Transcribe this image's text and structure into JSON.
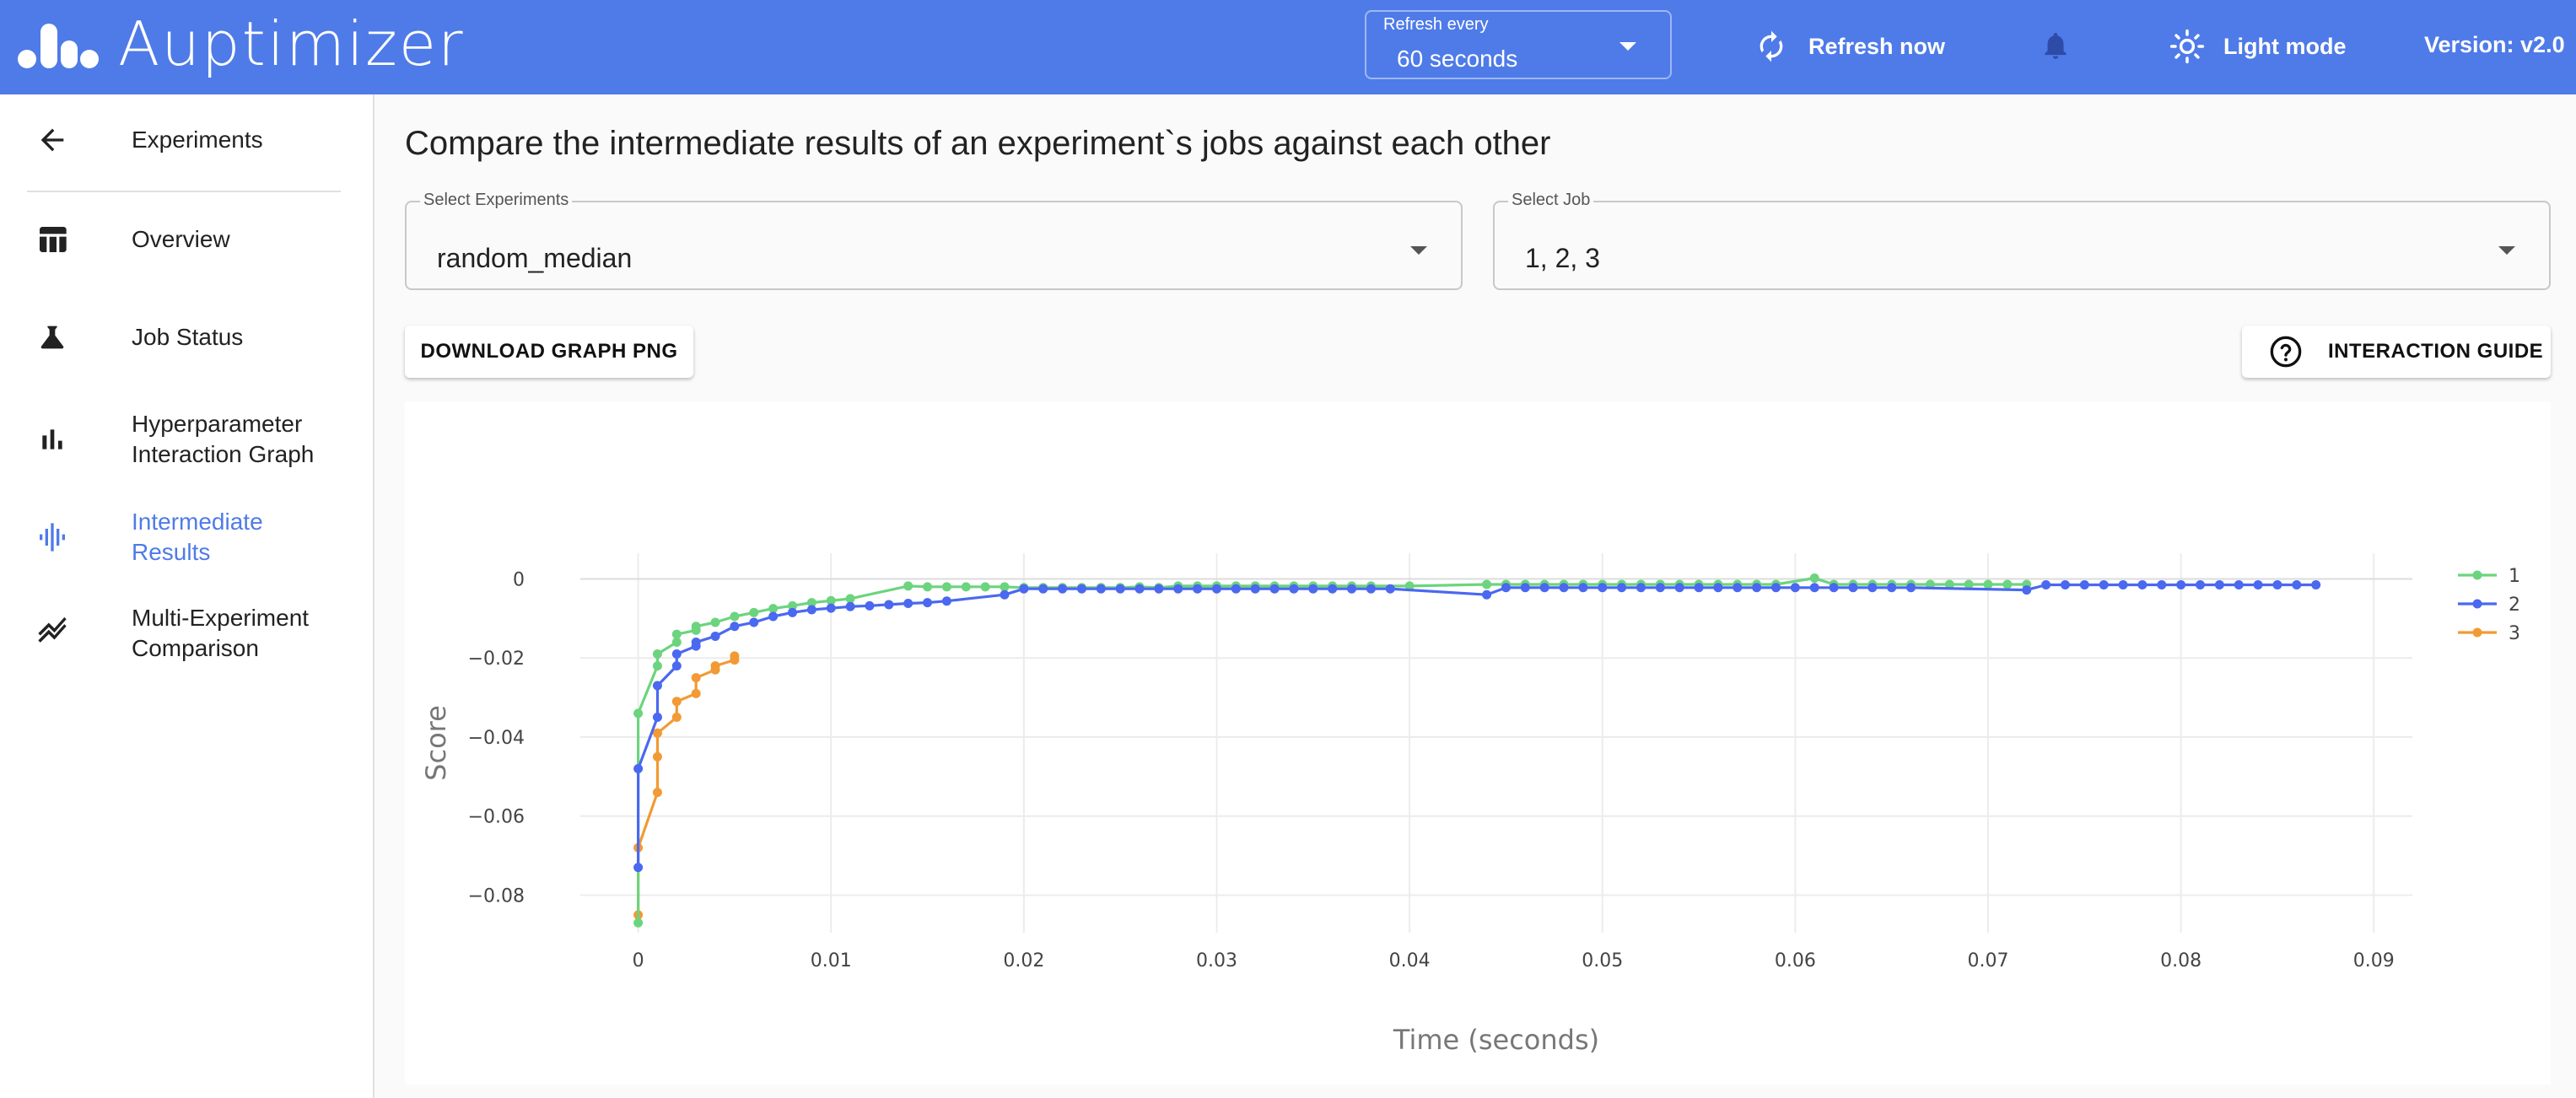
{
  "app": {
    "title": "Auptimizer",
    "version": "Version: v2.0"
  },
  "header": {
    "refresh_label": "Refresh every",
    "refresh_value": "60 seconds",
    "refresh_now": "Refresh now",
    "light_mode": "Light mode",
    "icons": {
      "logo": "bars-logo-icon",
      "refresh": "refresh-icon",
      "bell": "bell-icon",
      "sun": "sun-icon"
    }
  },
  "sidebar": {
    "items": [
      {
        "label": "Experiments",
        "icon": "arrow-left-icon"
      },
      {
        "label": "Overview",
        "icon": "table-icon"
      },
      {
        "label": "Job Status",
        "icon": "flask-icon"
      },
      {
        "label": "Hyperparameter Interaction Graph",
        "lines": [
          "Hyperparameter",
          "Interaction Graph"
        ],
        "icon": "bar-chart-icon"
      },
      {
        "label": "Intermediate Results",
        "lines": [
          "Intermediate",
          "Results"
        ],
        "icon": "waveform-icon",
        "active": true
      },
      {
        "label": "Multi-Experiment Comparison",
        "lines": [
          "Multi-Experiment",
          "Comparison"
        ],
        "icon": "trend-lines-icon"
      }
    ],
    "active_color": "#4f7be8"
  },
  "main": {
    "title": "Compare the intermediate results of an experiment`s jobs against each other",
    "experiment_select": {
      "label": "Select Experiments",
      "value": "random_median"
    },
    "job_select": {
      "label": "Select Job",
      "value": "1, 2, 3"
    },
    "download_button": "DOWNLOAD GRAPH PNG",
    "guide_button": "INTERACTION GUIDE"
  },
  "chart_data": {
    "type": "line",
    "xlabel": "Time (seconds)",
    "ylabel": "Score",
    "xlim": [
      -0.003,
      0.092
    ],
    "ylim": [
      -0.0895,
      0.0065
    ],
    "x_ticks": [
      0,
      0.01,
      0.02,
      0.03,
      0.04,
      0.05,
      0.06,
      0.07,
      0.08,
      0.09
    ],
    "x_tick_labels": [
      "0",
      "0.01",
      "0.02",
      "0.03",
      "0.04",
      "0.05",
      "0.06",
      "0.07",
      "0.08",
      "0.09"
    ],
    "y_ticks": [
      0,
      -0.02,
      -0.04,
      -0.06,
      -0.08
    ],
    "y_tick_labels": [
      "0",
      "−0.02",
      "−0.04",
      "−0.06",
      "−0.08"
    ],
    "legend_position": "right",
    "grid": true,
    "series": [
      {
        "name": "1",
        "color": "#6cd47e",
        "points": [
          [
            0,
            -0.087
          ],
          [
            0,
            -0.034
          ],
          [
            0.001,
            -0.022
          ],
          [
            0.001,
            -0.019
          ],
          [
            0.002,
            -0.016
          ],
          [
            0.002,
            -0.014
          ],
          [
            0.003,
            -0.013
          ],
          [
            0.003,
            -0.012
          ],
          [
            0.004,
            -0.011
          ],
          [
            0.005,
            -0.0095
          ],
          [
            0.006,
            -0.0085
          ],
          [
            0.007,
            -0.0075
          ],
          [
            0.008,
            -0.0068
          ],
          [
            0.009,
            -0.006
          ],
          [
            0.01,
            -0.0055
          ],
          [
            0.011,
            -0.005
          ],
          [
            0.014,
            -0.0018
          ],
          [
            0.015,
            -0.002
          ],
          [
            0.016,
            -0.002
          ],
          [
            0.017,
            -0.002
          ],
          [
            0.018,
            -0.002
          ],
          [
            0.019,
            -0.002
          ],
          [
            0.02,
            -0.0022
          ],
          [
            0.021,
            -0.0022
          ],
          [
            0.022,
            -0.0022
          ],
          [
            0.023,
            -0.0022
          ],
          [
            0.024,
            -0.0022
          ],
          [
            0.025,
            -0.0022
          ],
          [
            0.026,
            -0.002
          ],
          [
            0.027,
            -0.0022
          ],
          [
            0.028,
            -0.0018
          ],
          [
            0.029,
            -0.0018
          ],
          [
            0.03,
            -0.0018
          ],
          [
            0.031,
            -0.0018
          ],
          [
            0.032,
            -0.0018
          ],
          [
            0.033,
            -0.0018
          ],
          [
            0.034,
            -0.0018
          ],
          [
            0.035,
            -0.0018
          ],
          [
            0.036,
            -0.0018
          ],
          [
            0.037,
            -0.0018
          ],
          [
            0.038,
            -0.0018
          ],
          [
            0.04,
            -0.0018
          ],
          [
            0.044,
            -0.0014
          ],
          [
            0.045,
            -0.0014
          ],
          [
            0.046,
            -0.0014
          ],
          [
            0.047,
            -0.0014
          ],
          [
            0.048,
            -0.0014
          ],
          [
            0.049,
            -0.0014
          ],
          [
            0.05,
            -0.0014
          ],
          [
            0.051,
            -0.0014
          ],
          [
            0.052,
            -0.0014
          ],
          [
            0.053,
            -0.0014
          ],
          [
            0.054,
            -0.0014
          ],
          [
            0.055,
            -0.0014
          ],
          [
            0.056,
            -0.0014
          ],
          [
            0.057,
            -0.0014
          ],
          [
            0.058,
            -0.0014
          ],
          [
            0.059,
            -0.0014
          ],
          [
            0.061,
            0.0002
          ],
          [
            0.062,
            -0.0014
          ],
          [
            0.063,
            -0.0014
          ],
          [
            0.064,
            -0.0014
          ],
          [
            0.065,
            -0.0014
          ],
          [
            0.066,
            -0.0014
          ],
          [
            0.067,
            -0.0014
          ],
          [
            0.068,
            -0.0014
          ],
          [
            0.069,
            -0.0014
          ],
          [
            0.07,
            -0.0014
          ],
          [
            0.071,
            -0.0014
          ],
          [
            0.072,
            -0.0014
          ]
        ]
      },
      {
        "name": "2",
        "color": "#4a68f0",
        "points": [
          [
            0,
            -0.073
          ],
          [
            0,
            -0.048
          ],
          [
            0.001,
            -0.035
          ],
          [
            0.001,
            -0.027
          ],
          [
            0.002,
            -0.022
          ],
          [
            0.002,
            -0.019
          ],
          [
            0.003,
            -0.017
          ],
          [
            0.003,
            -0.016
          ],
          [
            0.004,
            -0.0145
          ],
          [
            0.005,
            -0.012
          ],
          [
            0.006,
            -0.011
          ],
          [
            0.007,
            -0.0095
          ],
          [
            0.008,
            -0.0085
          ],
          [
            0.009,
            -0.0078
          ],
          [
            0.01,
            -0.0074
          ],
          [
            0.011,
            -0.007
          ],
          [
            0.012,
            -0.0068
          ],
          [
            0.013,
            -0.0065
          ],
          [
            0.014,
            -0.0062
          ],
          [
            0.015,
            -0.006
          ],
          [
            0.016,
            -0.0056
          ],
          [
            0.019,
            -0.004
          ],
          [
            0.02,
            -0.0025
          ],
          [
            0.021,
            -0.0025
          ],
          [
            0.022,
            -0.0025
          ],
          [
            0.023,
            -0.0025
          ],
          [
            0.024,
            -0.0025
          ],
          [
            0.025,
            -0.0025
          ],
          [
            0.026,
            -0.0025
          ],
          [
            0.027,
            -0.0025
          ],
          [
            0.028,
            -0.0025
          ],
          [
            0.029,
            -0.0025
          ],
          [
            0.03,
            -0.0025
          ],
          [
            0.031,
            -0.0025
          ],
          [
            0.032,
            -0.0025
          ],
          [
            0.033,
            -0.0025
          ],
          [
            0.034,
            -0.0025
          ],
          [
            0.035,
            -0.0025
          ],
          [
            0.036,
            -0.0025
          ],
          [
            0.037,
            -0.0025
          ],
          [
            0.038,
            -0.0025
          ],
          [
            0.039,
            -0.0025
          ],
          [
            0.044,
            -0.004
          ],
          [
            0.045,
            -0.0022
          ],
          [
            0.046,
            -0.0022
          ],
          [
            0.047,
            -0.0022
          ],
          [
            0.048,
            -0.0022
          ],
          [
            0.049,
            -0.0022
          ],
          [
            0.05,
            -0.0022
          ],
          [
            0.051,
            -0.0022
          ],
          [
            0.052,
            -0.0022
          ],
          [
            0.053,
            -0.0022
          ],
          [
            0.054,
            -0.0022
          ],
          [
            0.055,
            -0.0022
          ],
          [
            0.056,
            -0.0022
          ],
          [
            0.057,
            -0.0022
          ],
          [
            0.058,
            -0.0022
          ],
          [
            0.059,
            -0.0022
          ],
          [
            0.06,
            -0.0022
          ],
          [
            0.061,
            -0.0022
          ],
          [
            0.062,
            -0.0022
          ],
          [
            0.063,
            -0.0022
          ],
          [
            0.064,
            -0.0022
          ],
          [
            0.065,
            -0.0022
          ],
          [
            0.066,
            -0.0022
          ],
          [
            0.072,
            -0.0028
          ],
          [
            0.073,
            -0.0015
          ],
          [
            0.074,
            -0.0015
          ],
          [
            0.075,
            -0.0015
          ],
          [
            0.076,
            -0.0015
          ],
          [
            0.077,
            -0.0015
          ],
          [
            0.078,
            -0.0015
          ],
          [
            0.079,
            -0.0015
          ],
          [
            0.08,
            -0.0015
          ],
          [
            0.081,
            -0.0015
          ],
          [
            0.082,
            -0.0015
          ],
          [
            0.083,
            -0.0015
          ],
          [
            0.084,
            -0.0015
          ],
          [
            0.085,
            -0.0015
          ],
          [
            0.086,
            -0.0015
          ],
          [
            0.087,
            -0.0015
          ]
        ]
      },
      {
        "name": "3",
        "color": "#f29a35",
        "points": [
          [
            0,
            -0.085
          ],
          [
            0,
            -0.068
          ],
          [
            0.001,
            -0.054
          ],
          [
            0.001,
            -0.045
          ],
          [
            0.001,
            -0.039
          ],
          [
            0.002,
            -0.035
          ],
          [
            0.002,
            -0.031
          ],
          [
            0.003,
            -0.029
          ],
          [
            0.003,
            -0.025
          ],
          [
            0.004,
            -0.023
          ],
          [
            0.004,
            -0.022
          ],
          [
            0.005,
            -0.0205
          ],
          [
            0.005,
            -0.0195
          ]
        ]
      }
    ]
  }
}
